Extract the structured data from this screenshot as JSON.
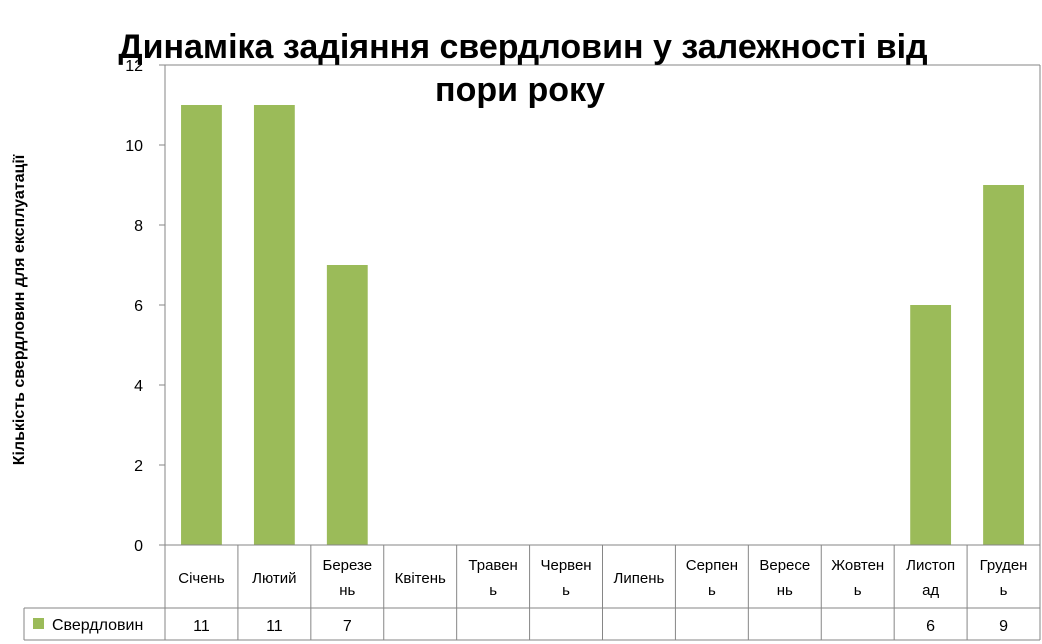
{
  "chart_data": {
    "type": "bar",
    "title_lines": [
      "Динаміка задіяння свердловин у залежності від",
      "пори року"
    ],
    "ylabel": "Кількість свердловин для експлуатації",
    "xlabel": "",
    "ylim": [
      0,
      12
    ],
    "yticks": [
      "0",
      "2",
      "4",
      "6",
      "8",
      "10",
      "12"
    ],
    "grid": false,
    "categories": [
      [
        "Січень"
      ],
      [
        "Лютий"
      ],
      [
        "Березе",
        "нь"
      ],
      [
        "Квітень"
      ],
      [
        "Травен",
        "ь"
      ],
      [
        "Червен",
        "ь"
      ],
      [
        "Липень"
      ],
      [
        "Серпен",
        "ь"
      ],
      [
        "Вересе",
        "нь"
      ],
      [
        "Жовтен",
        "ь"
      ],
      [
        "Листоп",
        "ад"
      ],
      [
        "Груден",
        "ь"
      ]
    ],
    "series": [
      {
        "name": "Свердловин",
        "color": "#9bbb59",
        "values": [
          11,
          11,
          7,
          null,
          null,
          null,
          null,
          null,
          null,
          null,
          6,
          9
        ],
        "labels": [
          "11",
          "11",
          "7",
          "",
          "",
          "",
          "",
          "",
          "",
          "",
          "6",
          "9"
        ]
      }
    ],
    "legend": "data-table-left"
  }
}
